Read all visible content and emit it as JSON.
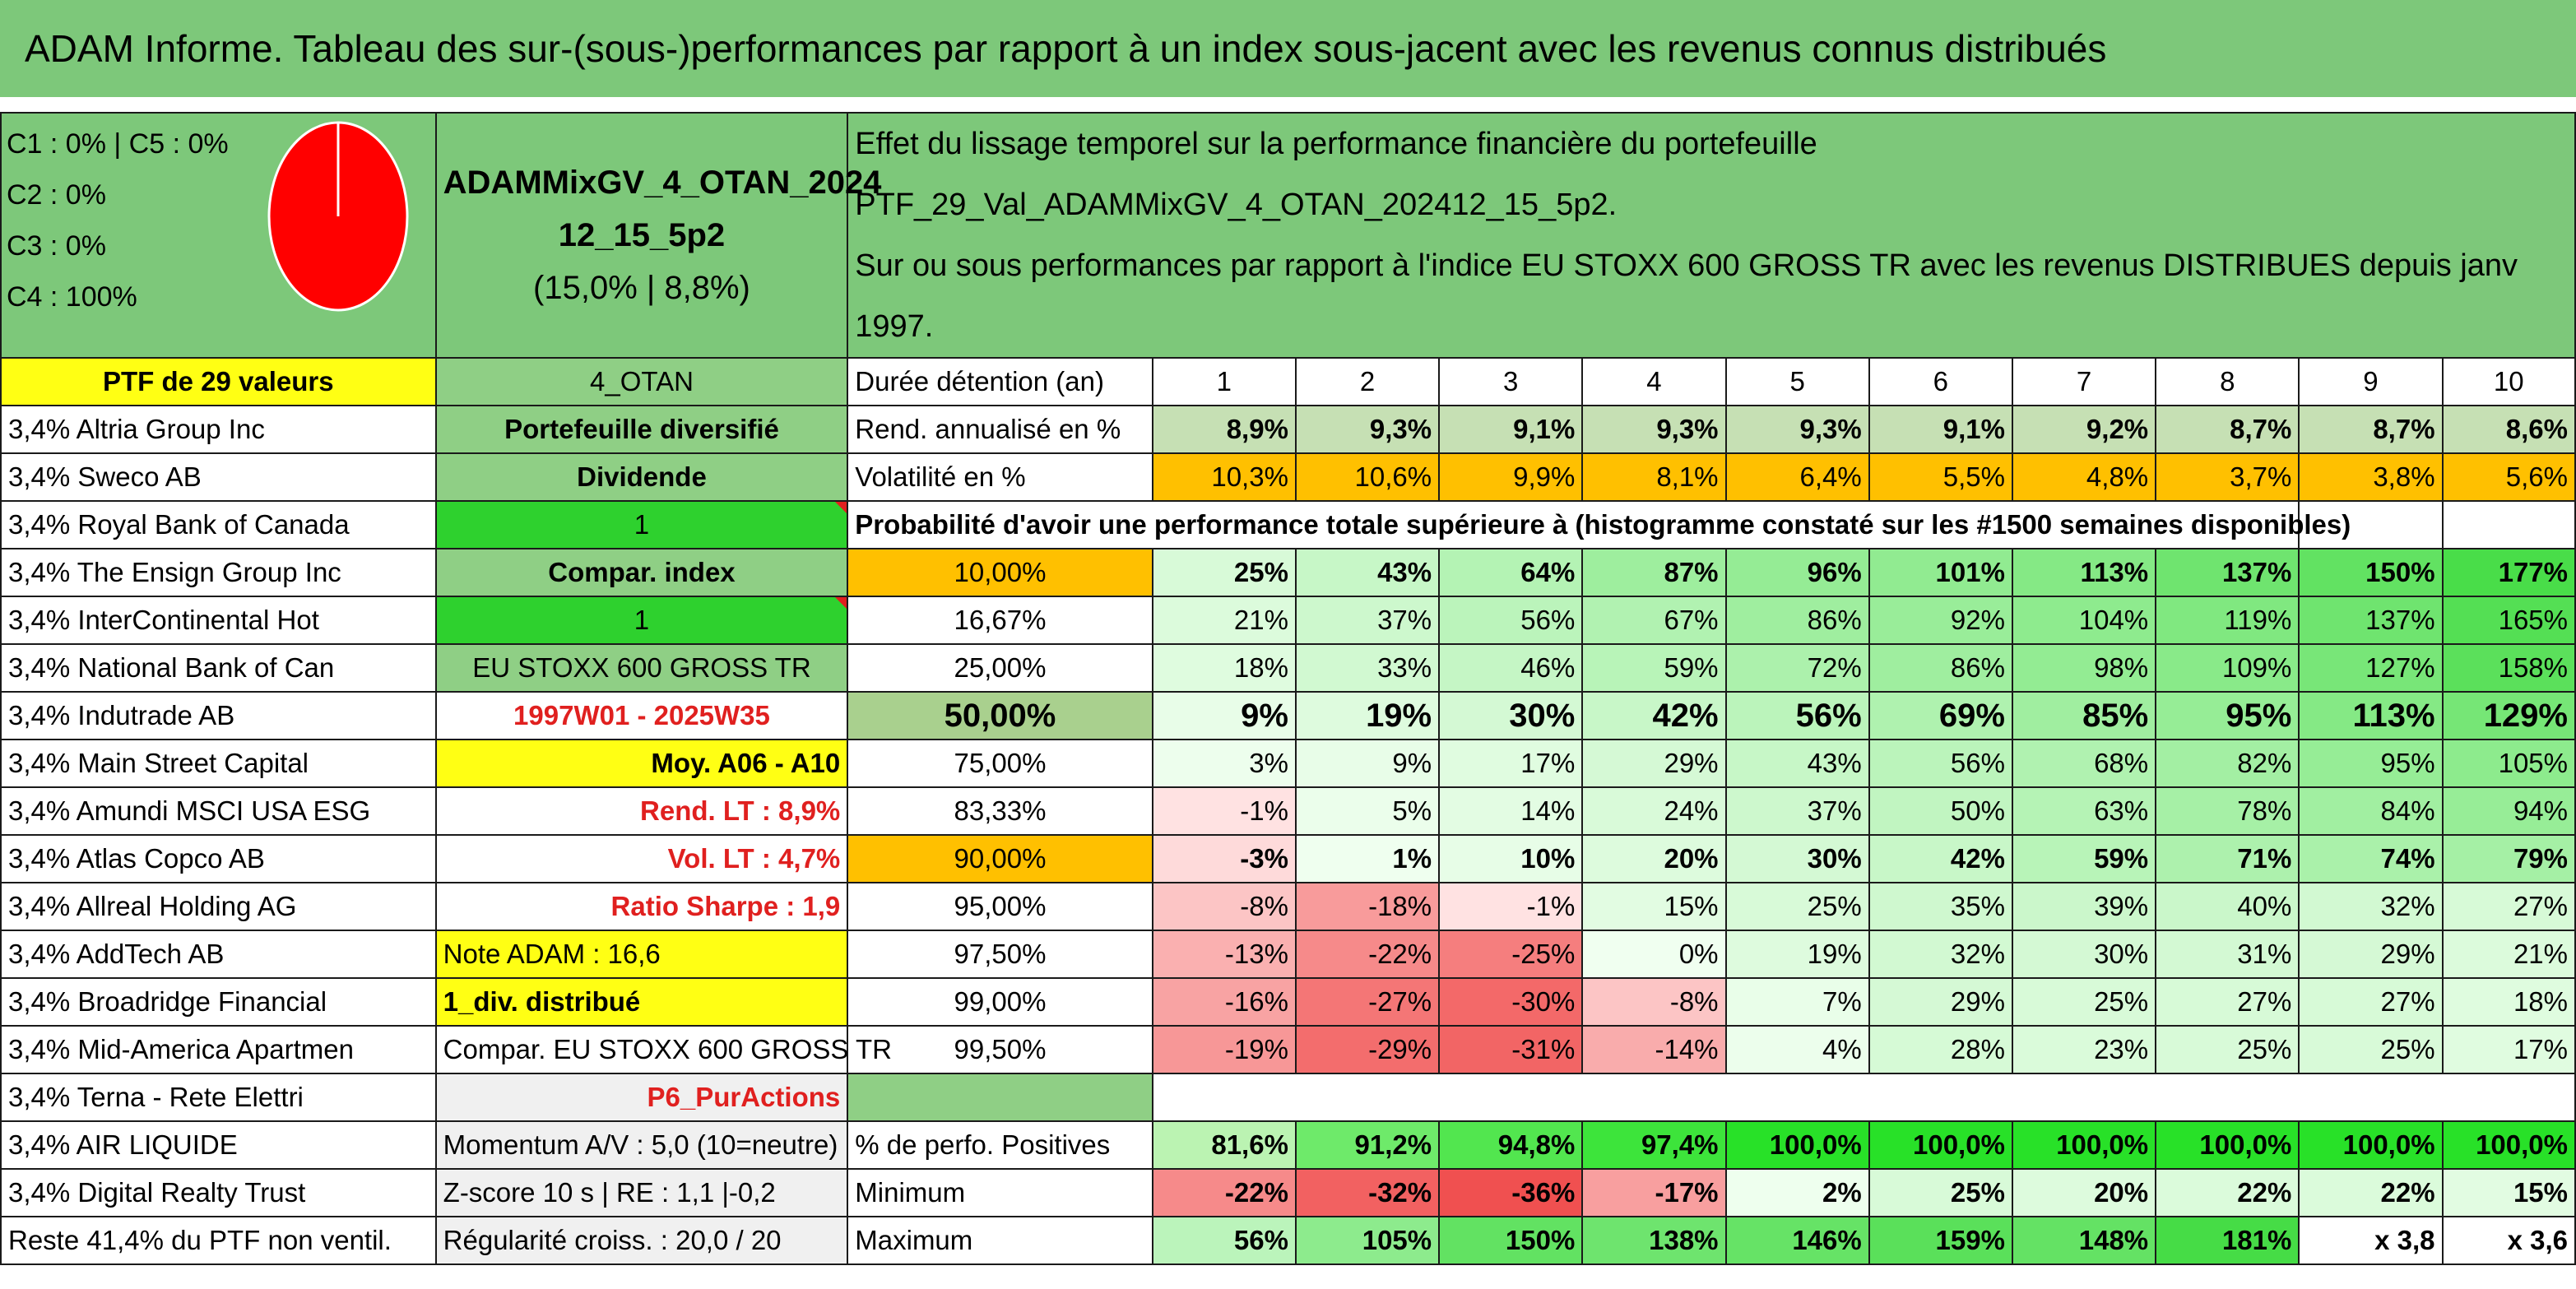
{
  "title": "ADAM Informe. Tableau des sur-(sous-)performances par rapport à un index sous-jacent avec les revenus connus distribués",
  "header": {
    "class_lines": [
      "C1 : 0% | C5 : 0%",
      "C2 : 0%",
      "C3 : 0%",
      "C4 : 100%"
    ],
    "portfolio_name_line1": "ADAMMixGV_4_OTAN_2024",
    "portfolio_name_line2": "12_15_5p2",
    "portfolio_name_line3": "(15,0% | 8,8%)",
    "description_line1": "Effet du lissage temporel sur la performance financière du portefeuille PTF_29_Val_ADAMMixGV_4_OTAN_202412_15_5p2.",
    "description_line2": "Sur ou sous performances par rapport à l'indice EU STOXX 600 GROSS TR avec les revenus DISTRIBUES depuis janv 1997."
  },
  "pie": {
    "type": "pie",
    "values": [
      0,
      0,
      0,
      100,
      0
    ],
    "labels": [
      "C1",
      "C2",
      "C3",
      "C4",
      "C5"
    ],
    "colors": [
      "#ff0000"
    ]
  },
  "row_ptf": {
    "label": "PTF de 29 valeurs",
    "code": "4_OTAN",
    "duration_label": "Durée détention (an)",
    "years": [
      "1",
      "2",
      "3",
      "4",
      "5",
      "6",
      "7",
      "8",
      "9",
      "10"
    ]
  },
  "holdings": [
    "3,4% Altria Group Inc",
    "3,4% Sweco AB",
    "3,4% Royal Bank of Canada",
    "3,4% The Ensign Group Inc",
    "3,4% InterContinental Hot",
    "3,4% National Bank of Can",
    "3,4% Indutrade AB",
    "3,4% Main Street Capital",
    "3,4% Amundi MSCI USA ESG",
    "3,4% Atlas Copco AB",
    "3,4% Allreal Holding AG",
    "3,4% AddTech AB",
    "3,4% Broadridge Financial",
    "3,4% Mid-America Apartmen",
    "3,4% Terna - Rete Elettri",
    "3,4% AIR LIQUIDE",
    "3,4% Digital Realty Trust",
    "Reste 41,4% du PTF non ventil."
  ],
  "info": [
    "Portefeuille diversifié",
    "Dividende",
    "1",
    "Compar. index",
    "1",
    "EU STOXX 600 GROSS TR",
    "1997W01 - 2025W35",
    "Moy. A06 - A10",
    "Rend. LT : 8,9%",
    "Vol. LT : 4,7%",
    "Ratio Sharpe : 1,9",
    "Note ADAM : 16,6",
    "1_div. distribué",
    "Compar. EU STOXX 600 GROSS TR",
    "P6_PurActions",
    "Momentum A/V : 5,0 (10=neutre)",
    "Z-score 10 s | RE : 1,1 |-0,2",
    "Régularité croiss. : 20,0 / 20"
  ],
  "rend": {
    "label": "Rend. annualisé en %",
    "values": [
      "8,9%",
      "9,3%",
      "9,1%",
      "9,3%",
      "9,3%",
      "9,1%",
      "9,2%",
      "8,7%",
      "8,7%",
      "8,6%"
    ]
  },
  "vol": {
    "label": "Volatilité en %",
    "values": [
      "10,3%",
      "10,6%",
      "9,9%",
      "8,1%",
      "6,4%",
      "5,5%",
      "4,8%",
      "3,7%",
      "3,8%",
      "5,6%"
    ]
  },
  "proba_title": "Probabilité d'avoir une performance totale supérieure à (histogramme constaté sur les #1500 semaines disponibles)",
  "chart_data": {
    "type": "table",
    "columns": [
      "1",
      "2",
      "3",
      "4",
      "5",
      "6",
      "7",
      "8",
      "9",
      "10"
    ],
    "rows": [
      {
        "prob": "10,00%",
        "values": [
          "25%",
          "43%",
          "64%",
          "87%",
          "96%",
          "101%",
          "113%",
          "137%",
          "150%",
          "177%"
        ]
      },
      {
        "prob": "16,67%",
        "values": [
          "21%",
          "37%",
          "56%",
          "67%",
          "86%",
          "92%",
          "104%",
          "119%",
          "137%",
          "165%"
        ]
      },
      {
        "prob": "25,00%",
        "values": [
          "18%",
          "33%",
          "46%",
          "59%",
          "72%",
          "86%",
          "98%",
          "109%",
          "127%",
          "158%"
        ]
      },
      {
        "prob": "50,00%",
        "values": [
          "9%",
          "19%",
          "30%",
          "42%",
          "56%",
          "69%",
          "85%",
          "95%",
          "113%",
          "129%"
        ]
      },
      {
        "prob": "75,00%",
        "values": [
          "3%",
          "9%",
          "17%",
          "29%",
          "43%",
          "56%",
          "68%",
          "82%",
          "95%",
          "105%"
        ]
      },
      {
        "prob": "83,33%",
        "values": [
          "-1%",
          "5%",
          "14%",
          "24%",
          "37%",
          "50%",
          "63%",
          "78%",
          "84%",
          "94%"
        ]
      },
      {
        "prob": "90,00%",
        "values": [
          "-3%",
          "1%",
          "10%",
          "20%",
          "30%",
          "42%",
          "59%",
          "71%",
          "74%",
          "79%"
        ]
      },
      {
        "prob": "95,00%",
        "values": [
          "-8%",
          "-18%",
          "-1%",
          "15%",
          "25%",
          "35%",
          "39%",
          "40%",
          "32%",
          "27%"
        ]
      },
      {
        "prob": "97,50%",
        "values": [
          "-13%",
          "-22%",
          "-25%",
          "0%",
          "19%",
          "32%",
          "30%",
          "31%",
          "29%",
          "21%"
        ]
      },
      {
        "prob": "99,00%",
        "values": [
          "-16%",
          "-27%",
          "-30%",
          "-8%",
          "7%",
          "29%",
          "25%",
          "27%",
          "27%",
          "18%"
        ]
      },
      {
        "prob": "99,50%",
        "values": [
          "-19%",
          "-29%",
          "-31%",
          "-14%",
          "4%",
          "28%",
          "23%",
          "25%",
          "25%",
          "17%"
        ]
      }
    ]
  },
  "positives": {
    "label": "% de perfo. Positives",
    "values": [
      "81,6%",
      "91,2%",
      "94,8%",
      "97,4%",
      "100,0%",
      "100,0%",
      "100,0%",
      "100,0%",
      "100,0%",
      "100,0%"
    ]
  },
  "minimum": {
    "label": "Minimum",
    "values": [
      "-22%",
      "-32%",
      "-36%",
      "-17%",
      "2%",
      "25%",
      "20%",
      "22%",
      "22%",
      "15%"
    ]
  },
  "maximum": {
    "label": "Maximum",
    "values": [
      "56%",
      "105%",
      "150%",
      "138%",
      "146%",
      "159%",
      "148%",
      "181%",
      "x 3,8",
      "x 3,6"
    ]
  },
  "colors": {
    "header_green": "#7dc87a",
    "bright_green": "#2ed12e",
    "yellow": "#ffff14",
    "orange": "#ffc000",
    "red_text": "#e0201f"
  }
}
